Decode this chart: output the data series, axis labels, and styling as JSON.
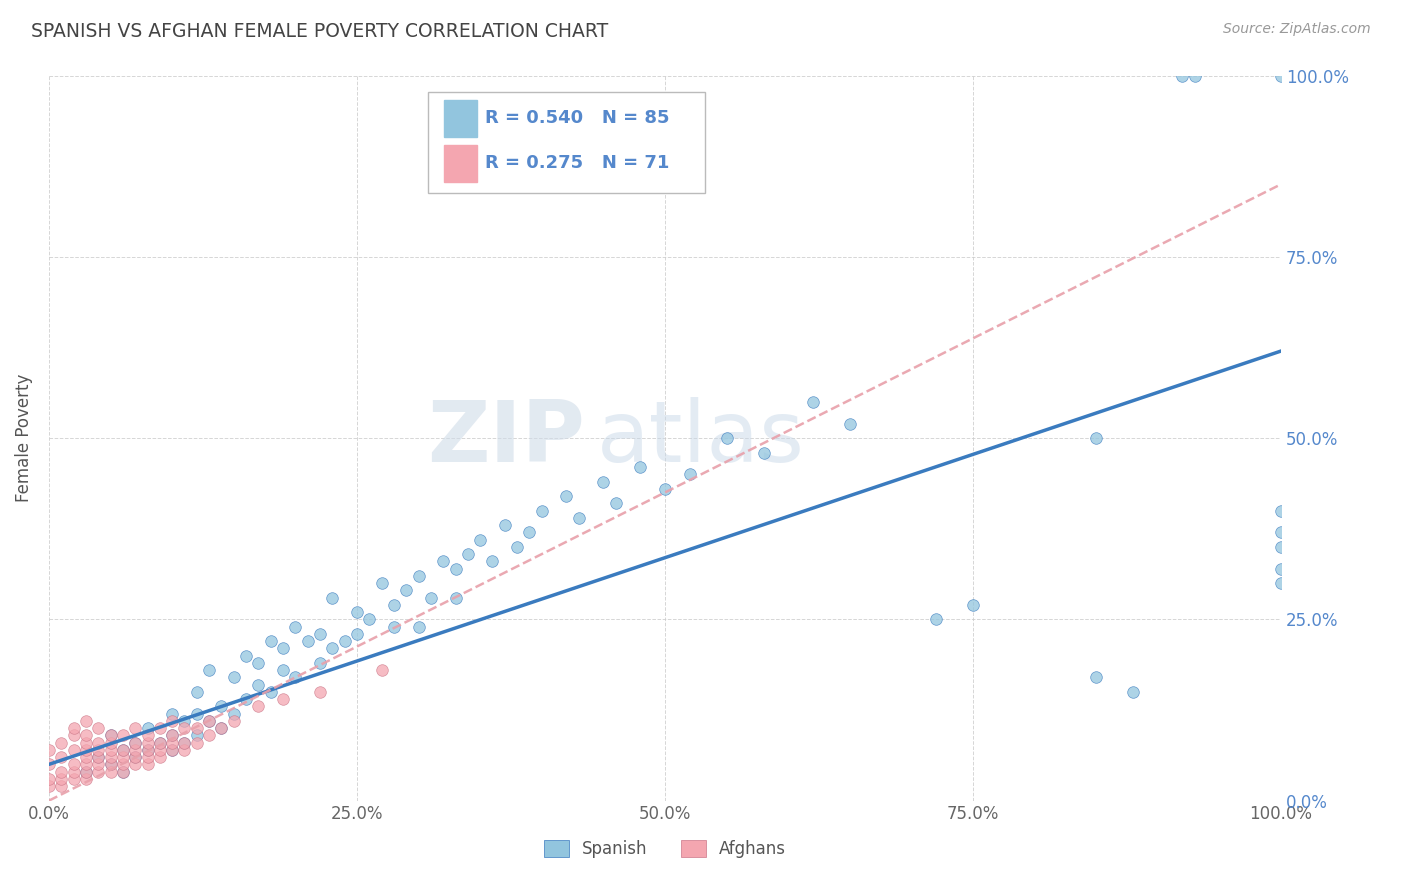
{
  "title": "SPANISH VS AFGHAN FEMALE POVERTY CORRELATION CHART",
  "source": "Source: ZipAtlas.com",
  "ylabel": "Female Poverty",
  "legend_r_spanish": "R = 0.540",
  "legend_n_spanish": "N = 85",
  "legend_r_afghan": "R = 0.275",
  "legend_n_afghan": "N = 71",
  "spanish_color": "#92c5de",
  "afghan_color": "#f4a6b0",
  "regression_spanish_color": "#3a7bbf",
  "regression_afghan_color": "#e8a0aa",
  "watermark_zip": "ZIP",
  "watermark_atlas": "atlas",
  "background_color": "#ffffff",
  "grid_color": "#cccccc",
  "title_color": "#444444",
  "source_color": "#999999",
  "right_tick_color": "#5588cc",
  "spanish_regression": [
    0.0,
    0.05,
    1.0,
    0.62
  ],
  "afghan_regression": [
    0.0,
    0.0,
    1.0,
    0.85
  ],
  "spanish_x": [
    0.03,
    0.04,
    0.05,
    0.05,
    0.06,
    0.06,
    0.07,
    0.07,
    0.08,
    0.08,
    0.09,
    0.1,
    0.1,
    0.1,
    0.11,
    0.11,
    0.12,
    0.12,
    0.12,
    0.13,
    0.13,
    0.14,
    0.14,
    0.15,
    0.15,
    0.16,
    0.16,
    0.17,
    0.17,
    0.18,
    0.18,
    0.19,
    0.19,
    0.2,
    0.2,
    0.21,
    0.22,
    0.22,
    0.23,
    0.23,
    0.24,
    0.25,
    0.25,
    0.26,
    0.27,
    0.28,
    0.28,
    0.29,
    0.3,
    0.3,
    0.31,
    0.32,
    0.33,
    0.33,
    0.34,
    0.35,
    0.36,
    0.37,
    0.38,
    0.39,
    0.4,
    0.42,
    0.43,
    0.45,
    0.46,
    0.48,
    0.5,
    0.52,
    0.55,
    0.58,
    0.62,
    0.65,
    0.72,
    0.75,
    0.85,
    0.85,
    0.88,
    0.92,
    0.93,
    1.0,
    1.0,
    1.0,
    1.0,
    1.0,
    1.0
  ],
  "spanish_y": [
    0.04,
    0.06,
    0.05,
    0.09,
    0.07,
    0.04,
    0.08,
    0.06,
    0.1,
    0.07,
    0.08,
    0.07,
    0.12,
    0.09,
    0.11,
    0.08,
    0.15,
    0.12,
    0.09,
    0.18,
    0.11,
    0.13,
    0.1,
    0.17,
    0.12,
    0.2,
    0.14,
    0.19,
    0.16,
    0.22,
    0.15,
    0.21,
    0.18,
    0.24,
    0.17,
    0.22,
    0.23,
    0.19,
    0.28,
    0.21,
    0.22,
    0.26,
    0.23,
    0.25,
    0.3,
    0.27,
    0.24,
    0.29,
    0.31,
    0.24,
    0.28,
    0.33,
    0.32,
    0.28,
    0.34,
    0.36,
    0.33,
    0.38,
    0.35,
    0.37,
    0.4,
    0.42,
    0.39,
    0.44,
    0.41,
    0.46,
    0.43,
    0.45,
    0.5,
    0.48,
    0.55,
    0.52,
    0.25,
    0.27,
    0.5,
    0.17,
    0.15,
    1.0,
    1.0,
    1.0,
    0.4,
    0.37,
    0.35,
    0.32,
    0.3
  ],
  "afghan_x": [
    0.0,
    0.0,
    0.0,
    0.0,
    0.01,
    0.01,
    0.01,
    0.01,
    0.01,
    0.02,
    0.02,
    0.02,
    0.02,
    0.02,
    0.02,
    0.03,
    0.03,
    0.03,
    0.03,
    0.03,
    0.03,
    0.03,
    0.03,
    0.04,
    0.04,
    0.04,
    0.04,
    0.04,
    0.04,
    0.05,
    0.05,
    0.05,
    0.05,
    0.05,
    0.05,
    0.06,
    0.06,
    0.06,
    0.06,
    0.06,
    0.07,
    0.07,
    0.07,
    0.07,
    0.07,
    0.08,
    0.08,
    0.08,
    0.08,
    0.08,
    0.09,
    0.09,
    0.09,
    0.09,
    0.1,
    0.1,
    0.1,
    0.1,
    0.11,
    0.11,
    0.11,
    0.12,
    0.12,
    0.13,
    0.13,
    0.14,
    0.15,
    0.17,
    0.19,
    0.22,
    0.27
  ],
  "afghan_y": [
    0.02,
    0.03,
    0.05,
    0.07,
    0.02,
    0.03,
    0.04,
    0.06,
    0.08,
    0.03,
    0.04,
    0.05,
    0.07,
    0.09,
    0.1,
    0.03,
    0.04,
    0.05,
    0.06,
    0.07,
    0.08,
    0.09,
    0.11,
    0.04,
    0.05,
    0.06,
    0.07,
    0.08,
    0.1,
    0.04,
    0.05,
    0.06,
    0.07,
    0.08,
    0.09,
    0.04,
    0.05,
    0.06,
    0.07,
    0.09,
    0.05,
    0.06,
    0.07,
    0.08,
    0.1,
    0.05,
    0.06,
    0.07,
    0.08,
    0.09,
    0.06,
    0.07,
    0.08,
    0.1,
    0.07,
    0.08,
    0.09,
    0.11,
    0.07,
    0.08,
    0.1,
    0.08,
    0.1,
    0.09,
    0.11,
    0.1,
    0.11,
    0.13,
    0.14,
    0.15,
    0.18
  ],
  "xlim": [
    0,
    1
  ],
  "ylim": [
    0,
    1
  ],
  "x_ticks": [
    0.0,
    0.25,
    0.5,
    0.75,
    1.0
  ],
  "x_tick_labels": [
    "0.0%",
    "25.0%",
    "50.0%",
    "75.0%",
    "100.0%"
  ],
  "y_ticks": [
    0.0,
    0.25,
    0.5,
    0.75,
    1.0
  ],
  "y_tick_labels_right": [
    "0.0%",
    "25.0%",
    "50.0%",
    "75.0%",
    "100.0%"
  ]
}
